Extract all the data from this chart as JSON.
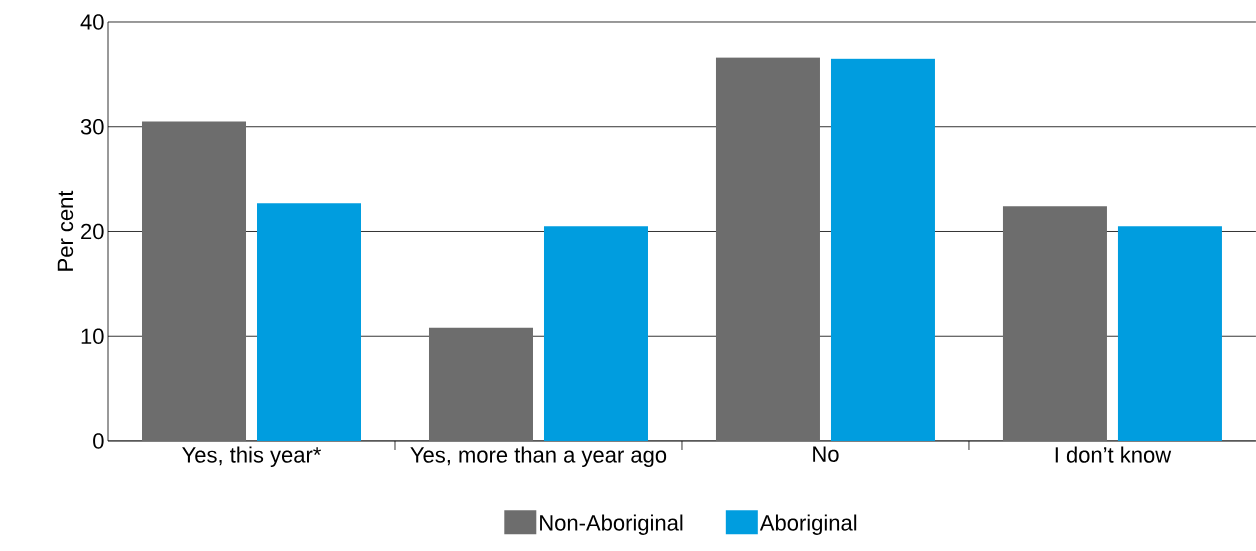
{
  "chart_data": {
    "type": "bar",
    "categories": [
      "Yes, this year*",
      "Yes, more than a year ago",
      "No",
      "I don’t know"
    ],
    "series": [
      {
        "name": "Non-Aboriginal",
        "color": "#6d6d6d",
        "values": [
          30.5,
          10.8,
          36.6,
          22.4
        ]
      },
      {
        "name": "Aboriginal",
        "color": "#009ddf",
        "values": [
          22.7,
          20.5,
          36.5,
          20.5
        ]
      }
    ],
    "ylabel": "Per cent",
    "ylim": [
      0,
      40
    ],
    "yticks": [
      0,
      10,
      20,
      30,
      40
    ],
    "grid": "y",
    "legend": "bottom"
  }
}
